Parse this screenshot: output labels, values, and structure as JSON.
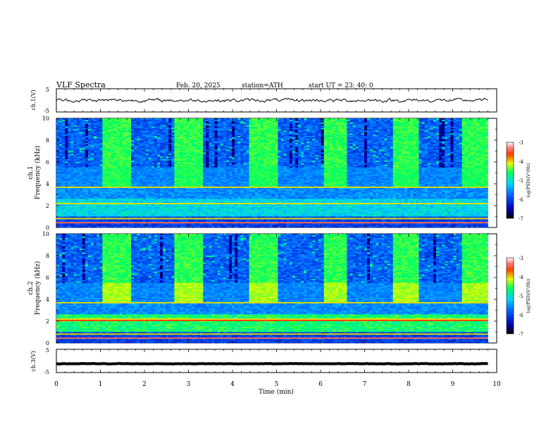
{
  "header": {
    "title": "VLF  Spectra",
    "date": "Feb. 20, 2025",
    "station": "station=ATH",
    "start_ut": "start  UT  =   23: 40: 0"
  },
  "axes": {
    "x_label": "Time  (min)",
    "x_ticks": [
      "0",
      "1",
      "2",
      "3",
      "4",
      "5",
      "6",
      "7",
      "8",
      "9",
      "10"
    ],
    "xlim": [
      0,
      10
    ],
    "ch1_volt_label": "ch.1(V)",
    "ch3_volt_label": "ch.3(V)",
    "volt_ticks": [
      "5",
      "-5"
    ],
    "volt_ylim": [
      -5,
      5
    ],
    "freq_label": "Frequency  (kHz)",
    "ch1_name": "ch.1",
    "ch2_name": "ch.2",
    "freq_ticks": [
      "10",
      "8",
      "6",
      "4",
      "2",
      "0"
    ],
    "freq_ylim": [
      0,
      10
    ]
  },
  "colorbar": {
    "label": "log(PSD)(V²/Hz)",
    "ticks": [
      "-3",
      "-4",
      "-5",
      "-6",
      "-7"
    ],
    "range": [
      -7,
      -3
    ]
  },
  "chart_data": [
    {
      "type": "line",
      "name": "ch.1 waveform",
      "ylabel": "ch.1(V)",
      "xlim": [
        0,
        9.8
      ],
      "ylim": [
        -5,
        5
      ],
      "level": 0,
      "noise_amplitude": 0.8
    },
    {
      "type": "heatmap",
      "name": "ch.1 spectrogram",
      "ylabel": "Frequency  (kHz)",
      "xlim": [
        0,
        9.8
      ],
      "ylim": [
        0,
        10
      ],
      "active_intervals_min": [
        [
          1.05,
          1.7
        ],
        [
          2.7,
          3.35
        ],
        [
          4.4,
          5.0
        ],
        [
          6.05,
          6.6
        ],
        [
          7.65,
          8.2
        ],
        [
          9.2,
          9.8
        ]
      ]
    },
    {
      "type": "heatmap",
      "name": "ch.2 spectrogram",
      "ylabel": "Frequency  (kHz)",
      "xlim": [
        0,
        9.8
      ],
      "ylim": [
        0,
        10
      ],
      "active_intervals_min": [
        [
          1.05,
          1.7
        ],
        [
          2.7,
          3.35
        ],
        [
          4.4,
          5.0
        ],
        [
          6.05,
          6.6
        ],
        [
          7.65,
          8.2
        ],
        [
          9.2,
          9.8
        ]
      ]
    },
    {
      "type": "line",
      "name": "ch.3 waveform",
      "ylabel": "ch.3(V)",
      "xlim": [
        0,
        9.8
      ],
      "ylim": [
        -5,
        5
      ],
      "level": -1.2,
      "noise_amplitude": 0.1
    }
  ]
}
